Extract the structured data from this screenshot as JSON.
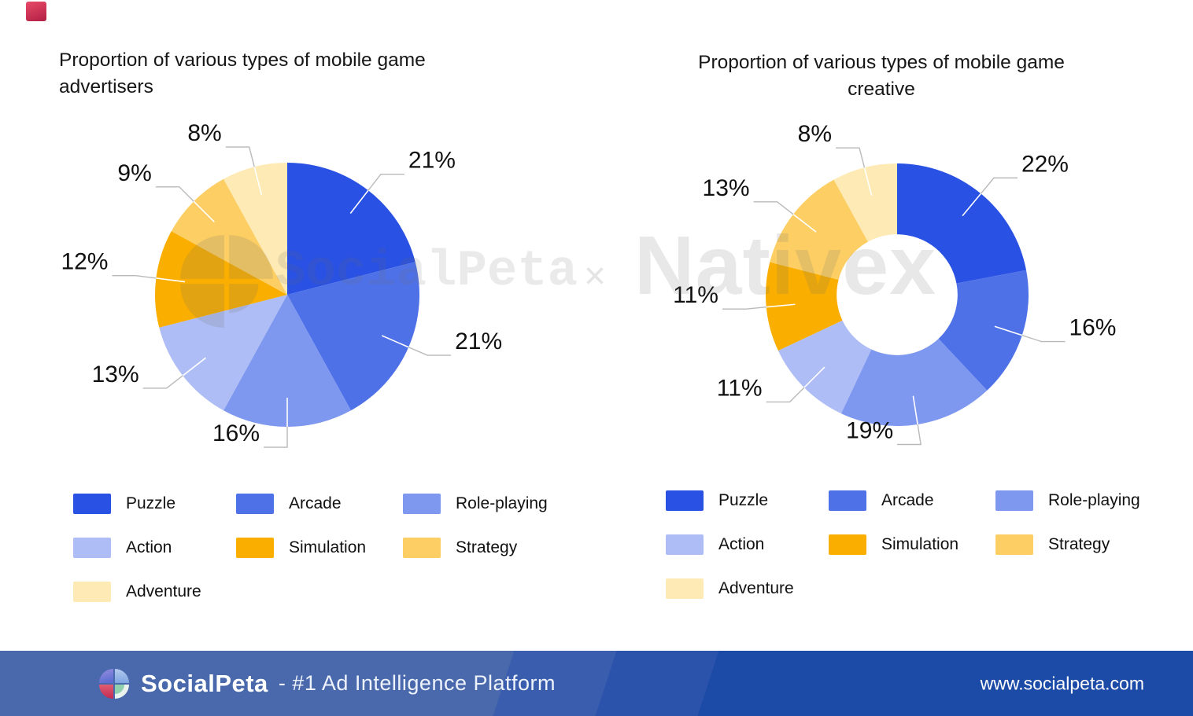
{
  "charts": [
    {
      "title_line1": "Proportion of various types of mobile game",
      "title_line2": "advertisers"
    },
    {
      "title_line1": "Proportion of various types of mobile game",
      "title_line2": "creative"
    }
  ],
  "chart_data": [
    {
      "type": "pie",
      "title": "Proportion of various types of mobile game advertisers",
      "categories": [
        "Puzzle",
        "Arcade",
        "Role-playing",
        "Action",
        "Simulation",
        "Strategy",
        "Adventure"
      ],
      "values": [
        21,
        21,
        16,
        13,
        12,
        9,
        8
      ],
      "labels": [
        "21%",
        "21%",
        "16%",
        "13%",
        "12%",
        "9%",
        "8%"
      ],
      "unit": "%",
      "donut": false,
      "inner_ratio": 0,
      "start_angle": "top",
      "direction": "clockwise",
      "colors": [
        "#2951e3",
        "#4e71e8",
        "#7e97ef",
        "#aebdf5",
        "#f9ae00",
        "#fcce63",
        "#fdeab4"
      ],
      "legend_position": "bottom"
    },
    {
      "type": "pie",
      "title": "Proportion of various types of mobile game creative",
      "categories": [
        "Puzzle",
        "Arcade",
        "Role-playing",
        "Action",
        "Simulation",
        "Strategy",
        "Adventure"
      ],
      "values": [
        22,
        16,
        19,
        11,
        11,
        13,
        8
      ],
      "labels": [
        "22%",
        "16%",
        "19%",
        "11%",
        "11%",
        "13%",
        "8%"
      ],
      "unit": "%",
      "donut": true,
      "inner_ratio": 0.46,
      "start_angle": "top",
      "direction": "clockwise",
      "colors": [
        "#2951e3",
        "#4e71e8",
        "#7e97ef",
        "#aebdf5",
        "#f9ae00",
        "#fcce63",
        "#fdeab4"
      ],
      "legend_position": "bottom"
    }
  ],
  "legend": {
    "items": [
      {
        "label": "Puzzle",
        "color": "#2951e3"
      },
      {
        "label": "Arcade",
        "color": "#4e71e8"
      },
      {
        "label": "Role-playing",
        "color": "#7e97ef"
      },
      {
        "label": "Action",
        "color": "#aebdf5"
      },
      {
        "label": "Simulation",
        "color": "#f9ae00"
      },
      {
        "label": "Strategy",
        "color": "#fcce63"
      },
      {
        "label": "Adventure",
        "color": "#fdeab4"
      }
    ]
  },
  "watermark": {
    "text_left": "SocialPeta",
    "separator": "×",
    "text_right": "Nativex"
  },
  "footer": {
    "brand": "SocialPeta",
    "tagline": "- #1 Ad Intelligence Platform",
    "url": "www.socialpeta.com"
  }
}
